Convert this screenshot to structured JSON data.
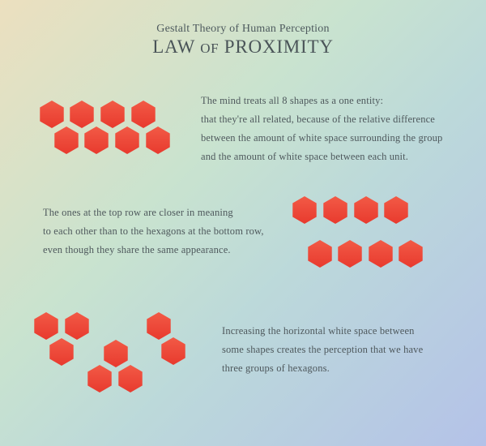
{
  "header": {
    "subtitle": "Gestalt Theory of Human Perception",
    "title_word1": "LAW",
    "title_word2": "OF",
    "title_word3": "PROXIMITY"
  },
  "sections": [
    {
      "text_lines": [
        "The mind treats all 8 shapes as a one entity:",
        "that they're all related, because of the relative difference",
        "between the amount of white space surrounding the group",
        "and the amount of white space between each unit."
      ]
    },
    {
      "text_lines": [
        "The ones at the top row are closer in meaning",
        "to each other than to the hexagons at the bottom row,",
        "even though they share the same appearance."
      ]
    },
    {
      "text_lines": [
        "Increasing the horizontal white space between",
        "some shapes creates the perception that we have",
        "three groups of hexagons."
      ]
    }
  ],
  "colors": {
    "hexagon_top": "#f25a46",
    "hexagon_bottom": "#e83a2e"
  }
}
